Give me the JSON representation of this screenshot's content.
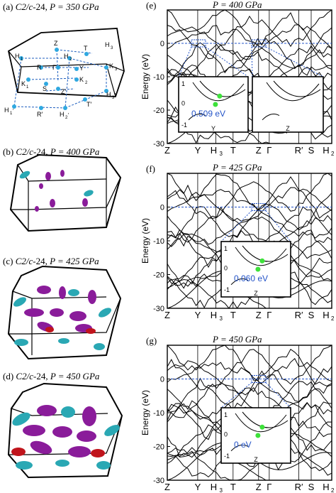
{
  "panels": {
    "a": {
      "tag": "(a)",
      "phase": "C2/c",
      "suffix": "-24,",
      "pressure": "P = 350 GPa",
      "points": [
        "Z",
        "H",
        "1",
        "H",
        "2",
        "T",
        "H",
        "3",
        "R",
        "Γ",
        "Y",
        "K",
        "1",
        "K",
        "2",
        "K",
        "3",
        "S",
        "Z′",
        "T′",
        "H",
        "3",
        "′",
        "H",
        "1",
        "′",
        "R′",
        "H",
        "2",
        "′"
      ]
    },
    "b": {
      "tag": "(b)",
      "phase": "C2/c",
      "suffix": "-24,",
      "pressure": "P = 400 GPa"
    },
    "c": {
      "tag": "(c)",
      "phase": "C2/c",
      "suffix": "-24,",
      "pressure": "P = 425 GPa"
    },
    "d": {
      "tag": "(d)",
      "phase": "C2/c",
      "suffix": "-24,",
      "pressure": "P = 450 GPa"
    }
  },
  "chart_data": [
    {
      "type": "line",
      "panel": "e",
      "tag": "(e)",
      "title": "P = 400 GPa",
      "ylabel": "Energy (eV)",
      "ylim": [
        -30,
        10
      ],
      "yticks": [
        "0",
        "-10",
        "-20",
        "-30"
      ],
      "kpath": [
        "Z",
        "Y",
        "H",
        "3",
        "T",
        "Z",
        "Γ",
        "R′",
        "S",
        "H",
        "2"
      ],
      "inset_left": {
        "gap": "0.509 eV",
        "yticks": [
          "1",
          "0",
          "-1"
        ],
        "xlabel": "Y"
      },
      "inset_right": {
        "xlabel": "Z"
      }
    },
    {
      "type": "line",
      "panel": "f",
      "tag": "(f)",
      "title": "P = 425 GPa",
      "ylabel": "Energy (eV)",
      "ylim": [
        -30,
        10
      ],
      "yticks": [
        "0",
        "-10",
        "-20",
        "-30"
      ],
      "kpath": [
        "Z",
        "Y",
        "H",
        "3",
        "T",
        "Z",
        "Γ",
        "R′",
        "S",
        "H",
        "2"
      ],
      "inset": {
        "gap": "0.060 eV",
        "yticks": [
          "1",
          "0",
          "-1"
        ],
        "xlabel": "Z"
      }
    },
    {
      "type": "line",
      "panel": "g",
      "tag": "(g)",
      "title": "P = 450 GPa",
      "ylabel": "Energy (eV)",
      "ylim": [
        -30,
        10
      ],
      "yticks": [
        "0",
        "-10",
        "-20",
        "-30"
      ],
      "kpath": [
        "Z",
        "Y",
        "H",
        "3",
        "T",
        "Z",
        "Γ",
        "R′",
        "S",
        "H",
        "2"
      ],
      "inset": {
        "gap": "0 eV",
        "yticks": [
          "1",
          "0",
          "-1"
        ],
        "xlabel": "Z"
      }
    }
  ],
  "colors": {
    "cyan": "#2aa8b4",
    "purple": "#8a1c9a",
    "red": "#c0141c",
    "green": "#3de13a",
    "blue": "#2454c8",
    "point": "#2fa8e0"
  }
}
